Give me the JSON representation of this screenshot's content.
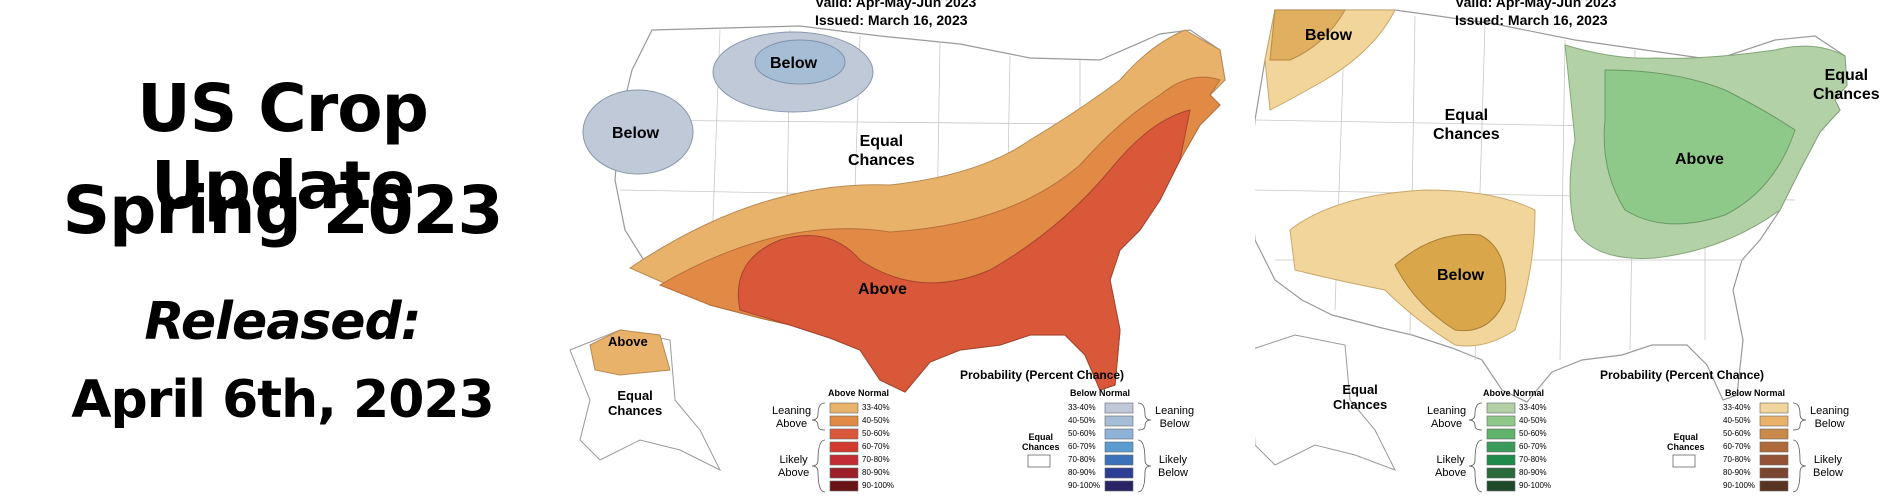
{
  "title": {
    "line1": "US Crop Update",
    "line2": "Spring 2023",
    "line3": "Released:",
    "line4": "April 6th, 2023"
  },
  "maps": [
    {
      "valid": "Valid:  Apr-May-Jun 2023",
      "issued": "Issued:  March 16, 2023",
      "regions": {
        "below_north": "Below",
        "below_west": "Below",
        "equal_center": "Equal\nChances",
        "above_south": "Above",
        "alaska_above": "Above",
        "alaska_equal": "Equal\nChances"
      },
      "legend": {
        "title": "Probability (Percent Chance)",
        "above_header": "Above Normal",
        "below_header": "Below Normal",
        "leaning_above": "Leaning\nAbove",
        "likely_above": "Likely\nAbove",
        "leaning_below": "Leaning\nBelow",
        "likely_below": "Likely\nBelow",
        "equal": "Equal\nChances",
        "above_rows": [
          "33-40%",
          "40-50%",
          "50-60%",
          "60-70%",
          "70-80%",
          "80-90%",
          "90-100%"
        ],
        "below_rows": [
          "33-40%",
          "40-50%",
          "50-60%",
          "60-70%",
          "70-80%",
          "80-90%",
          "90-100%"
        ],
        "above_colors": [
          "#e8b26a",
          "#e08a45",
          "#d9583a",
          "#d23a2e",
          "#c42c34",
          "#9c1f2a",
          "#6b1418"
        ],
        "below_colors": [
          "#bfc9d8",
          "#a6bdd6",
          "#8fb3d8",
          "#5a9cd0",
          "#3a71b8",
          "#2c3f95",
          "#2a2366"
        ]
      }
    },
    {
      "valid": "Valid:  Apr-May-Jun 2023",
      "issued": "Issued:  March 16, 2023",
      "regions": {
        "below_nw": "Below",
        "equal_west": "Equal\nChances",
        "equal_ne": "Equal\nChances",
        "above_mw": "Above",
        "below_sw": "Below",
        "alaska_equal": "Equal\nChances"
      },
      "legend": {
        "title": "Probability (Percent Chance)",
        "above_header": "Above Normal",
        "below_header": "Below Normal",
        "leaning_above": "Leaning\nAbove",
        "likely_above": "Likely\nAbove",
        "leaning_below": "Leaning\nBelow",
        "likely_below": "Likely\nBelow",
        "equal": "Equal\nChances",
        "above_rows": [
          "33-40%",
          "40-50%",
          "50-60%",
          "60-70%",
          "70-80%",
          "80-90%",
          "90-100%"
        ],
        "below_rows": [
          "33-40%",
          "40-50%",
          "50-60%",
          "60-70%",
          "70-80%",
          "80-90%",
          "90-100%"
        ],
        "above_colors": [
          "#b3d1a6",
          "#8fc98a",
          "#5fb36a",
          "#3a9a5a",
          "#1f8a4a",
          "#2a6a3a",
          "#1e4a2a"
        ],
        "below_colors": [
          "#f2d59a",
          "#e8b26a",
          "#c98a4a",
          "#b06a3a",
          "#945236",
          "#7a4630",
          "#5a3422"
        ]
      }
    }
  ]
}
